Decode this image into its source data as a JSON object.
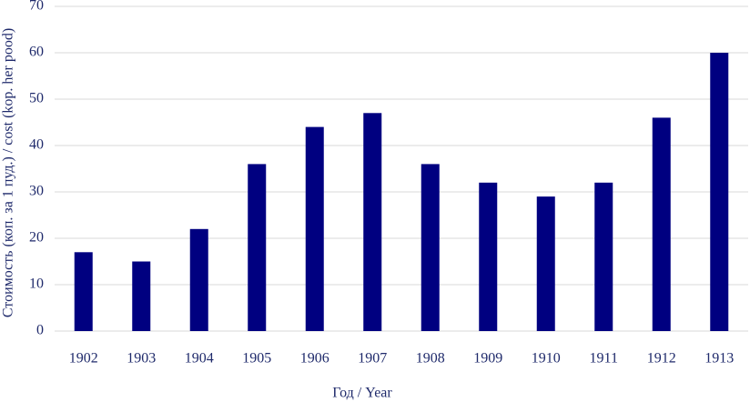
{
  "chart_data": {
    "type": "bar",
    "x_label": "Год / Year",
    "y_label": "Стоимость (коп. за 1 пуд.)  / cost (kop. her pood)",
    "categories": [
      "1902",
      "1903",
      "1904",
      "1905",
      "1906",
      "1907",
      "1908",
      "1909",
      "1910",
      "1911",
      "1912",
      "1913"
    ],
    "values": [
      17,
      15,
      22,
      36,
      44,
      47,
      36,
      32,
      29,
      32,
      46,
      60
    ],
    "color": "#000080",
    "ylim": [
      0,
      70
    ],
    "yticks": [
      0,
      10,
      20,
      30,
      40,
      50,
      60,
      70
    ],
    "grid": true
  }
}
